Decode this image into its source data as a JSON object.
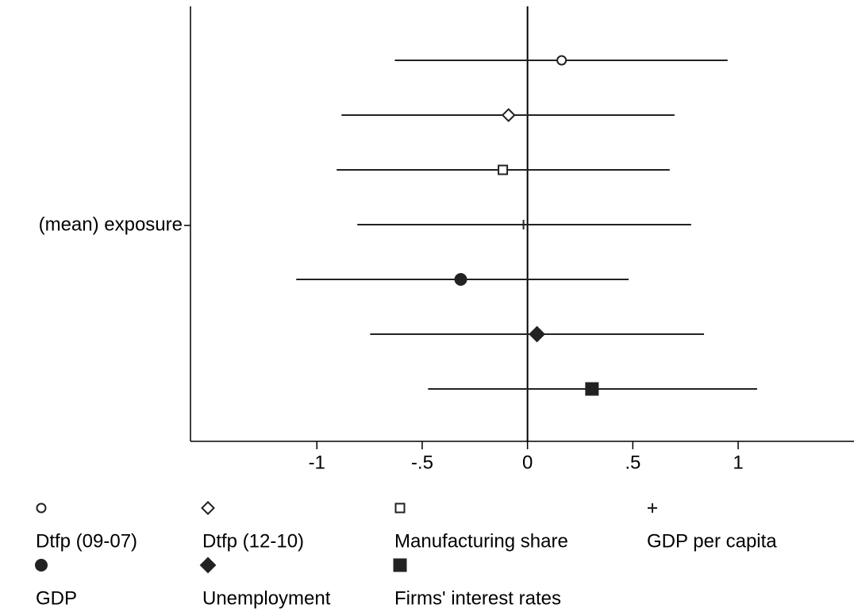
{
  "chart_data": {
    "type": "coefplot",
    "y_label": "(mean) exposure",
    "xlim": [
      -1.6,
      1.55
    ],
    "xticks": [
      -1,
      {
        "value": -0.5,
        "label": "-.5"
      },
      0,
      {
        "value": 0.5,
        "label": ".5"
      },
      1
    ],
    "reference_line": 0,
    "series": [
      {
        "name": "Dtfp (09-07)",
        "marker": "circle-open",
        "color": "#222",
        "value": 0.162,
        "ci": [
          -0.63,
          0.95
        ]
      },
      {
        "name": "Dtfp (12-10)",
        "marker": "diamond-open",
        "color": "#222",
        "value": -0.09,
        "ci": [
          -0.883,
          0.698
        ]
      },
      {
        "name": "Manufacturing share",
        "marker": "square-open",
        "color": "#222",
        "value": -0.117,
        "ci": [
          -0.906,
          0.675
        ]
      },
      {
        "name": "GDP per capita",
        "marker": "plus",
        "color": "#222",
        "value": -0.019,
        "ci": [
          -0.808,
          0.777
        ]
      },
      {
        "name": "GDP",
        "marker": "circle",
        "color": "#222",
        "value": -0.317,
        "ci": [
          -1.098,
          0.48
        ]
      },
      {
        "name": "Unemployment",
        "marker": "diamond",
        "color": "#222",
        "value": 0.045,
        "ci": [
          -0.747,
          0.838
        ]
      },
      {
        "name": "Firms' interest rates",
        "marker": "square",
        "color": "#222",
        "value": 0.306,
        "ci": [
          -0.472,
          1.09
        ]
      }
    ]
  }
}
